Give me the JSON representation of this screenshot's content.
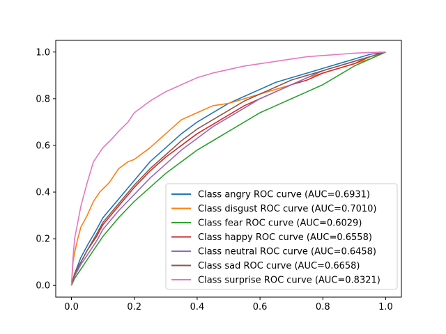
{
  "chart_data": {
    "type": "line",
    "title": "",
    "xlabel": "",
    "ylabel": "",
    "xlim": [
      -0.05,
      1.05
    ],
    "ylim": [
      -0.05,
      1.05
    ],
    "xticks": [
      "0.0",
      "0.2",
      "0.4",
      "0.6",
      "0.8",
      "1.0"
    ],
    "yticks": [
      "0.0",
      "0.2",
      "0.4",
      "0.6",
      "0.8",
      "1.0"
    ],
    "grid": false,
    "legend_position": "lower-right",
    "series": [
      {
        "name": "Class angry ROC curve (AUC=0.6931)",
        "color": "#1f77b4",
        "x": [
          0,
          0.01,
          0.03,
          0.05,
          0.08,
          0.1,
          0.15,
          0.2,
          0.25,
          0.3,
          0.35,
          0.4,
          0.45,
          0.5,
          0.55,
          0.6,
          0.65,
          0.7,
          0.75,
          0.8,
          0.85,
          0.9,
          0.95,
          1.0
        ],
        "y": [
          0,
          0.05,
          0.12,
          0.17,
          0.24,
          0.29,
          0.37,
          0.45,
          0.53,
          0.59,
          0.65,
          0.7,
          0.74,
          0.78,
          0.81,
          0.84,
          0.87,
          0.89,
          0.91,
          0.93,
          0.95,
          0.97,
          0.99,
          1.0
        ]
      },
      {
        "name": "Class disgust ROC curve (AUC=0.7010)",
        "color": "#ff7f0e",
        "x": [
          0,
          0.005,
          0.01,
          0.02,
          0.03,
          0.05,
          0.07,
          0.09,
          0.12,
          0.15,
          0.18,
          0.2,
          0.25,
          0.3,
          0.35,
          0.4,
          0.45,
          0.5,
          0.55,
          0.6,
          0.65,
          0.7,
          0.75,
          0.8,
          0.85,
          0.9,
          0.95,
          1.0
        ],
        "y": [
          0,
          0.1,
          0.14,
          0.2,
          0.25,
          0.3,
          0.36,
          0.4,
          0.44,
          0.5,
          0.53,
          0.54,
          0.59,
          0.65,
          0.71,
          0.74,
          0.77,
          0.78,
          0.8,
          0.82,
          0.84,
          0.86,
          0.89,
          0.91,
          0.93,
          0.95,
          0.97,
          1.0
        ]
      },
      {
        "name": "Class fear ROC curve (AUC=0.6029)",
        "color": "#2ca02c",
        "x": [
          0,
          0.01,
          0.03,
          0.05,
          0.08,
          0.1,
          0.15,
          0.2,
          0.25,
          0.3,
          0.35,
          0.4,
          0.45,
          0.5,
          0.55,
          0.6,
          0.65,
          0.7,
          0.75,
          0.8,
          0.85,
          0.9,
          0.95,
          1.0
        ],
        "y": [
          0,
          0.03,
          0.07,
          0.11,
          0.17,
          0.21,
          0.29,
          0.36,
          0.42,
          0.48,
          0.53,
          0.58,
          0.62,
          0.66,
          0.7,
          0.74,
          0.77,
          0.8,
          0.83,
          0.86,
          0.9,
          0.94,
          0.97,
          1.0
        ]
      },
      {
        "name": "Class happy ROC curve (AUC=0.6558)",
        "color": "#d62728",
        "x": [
          0,
          0.01,
          0.03,
          0.05,
          0.08,
          0.1,
          0.15,
          0.2,
          0.25,
          0.3,
          0.35,
          0.4,
          0.45,
          0.5,
          0.55,
          0.6,
          0.65,
          0.7,
          0.75,
          0.8,
          0.85,
          0.9,
          0.95,
          1.0
        ],
        "y": [
          0,
          0.05,
          0.1,
          0.15,
          0.21,
          0.26,
          0.34,
          0.42,
          0.49,
          0.55,
          0.6,
          0.65,
          0.69,
          0.73,
          0.77,
          0.8,
          0.83,
          0.86,
          0.88,
          0.91,
          0.93,
          0.95,
          0.98,
          1.0
        ]
      },
      {
        "name": "Class neutral ROC curve (AUC=0.6458)",
        "color": "#9467bd",
        "x": [
          0,
          0.01,
          0.03,
          0.05,
          0.08,
          0.1,
          0.15,
          0.2,
          0.25,
          0.3,
          0.35,
          0.4,
          0.45,
          0.5,
          0.55,
          0.6,
          0.65,
          0.7,
          0.75,
          0.8,
          0.85,
          0.9,
          0.95,
          1.0
        ],
        "y": [
          0,
          0.04,
          0.09,
          0.13,
          0.19,
          0.24,
          0.32,
          0.39,
          0.46,
          0.52,
          0.58,
          0.63,
          0.68,
          0.72,
          0.76,
          0.8,
          0.83,
          0.86,
          0.89,
          0.92,
          0.94,
          0.96,
          0.98,
          1.0
        ]
      },
      {
        "name": "Class sad ROC curve (AUC=0.6658)",
        "color": "#8c564b",
        "x": [
          0,
          0.01,
          0.03,
          0.05,
          0.08,
          0.1,
          0.15,
          0.2,
          0.25,
          0.3,
          0.35,
          0.4,
          0.45,
          0.5,
          0.55,
          0.6,
          0.65,
          0.7,
          0.75,
          0.8,
          0.85,
          0.9,
          0.95,
          1.0
        ],
        "y": [
          0,
          0.05,
          0.1,
          0.15,
          0.22,
          0.27,
          0.35,
          0.43,
          0.5,
          0.56,
          0.62,
          0.67,
          0.71,
          0.75,
          0.79,
          0.82,
          0.85,
          0.88,
          0.9,
          0.92,
          0.94,
          0.96,
          0.98,
          1.0
        ]
      },
      {
        "name": "Class surprise ROC curve (AUC=0.8321)",
        "color": "#e377c2",
        "x": [
          0,
          0.005,
          0.01,
          0.02,
          0.03,
          0.05,
          0.07,
          0.1,
          0.13,
          0.15,
          0.18,
          0.2,
          0.25,
          0.3,
          0.35,
          0.4,
          0.45,
          0.5,
          0.55,
          0.6,
          0.65,
          0.7,
          0.75,
          0.8,
          0.85,
          0.9,
          0.95,
          1.0
        ],
        "y": [
          0,
          0.12,
          0.2,
          0.27,
          0.34,
          0.44,
          0.53,
          0.59,
          0.63,
          0.66,
          0.7,
          0.74,
          0.79,
          0.83,
          0.86,
          0.89,
          0.91,
          0.925,
          0.94,
          0.95,
          0.96,
          0.97,
          0.98,
          0.985,
          0.99,
          0.995,
          0.998,
          1.0
        ]
      }
    ]
  }
}
